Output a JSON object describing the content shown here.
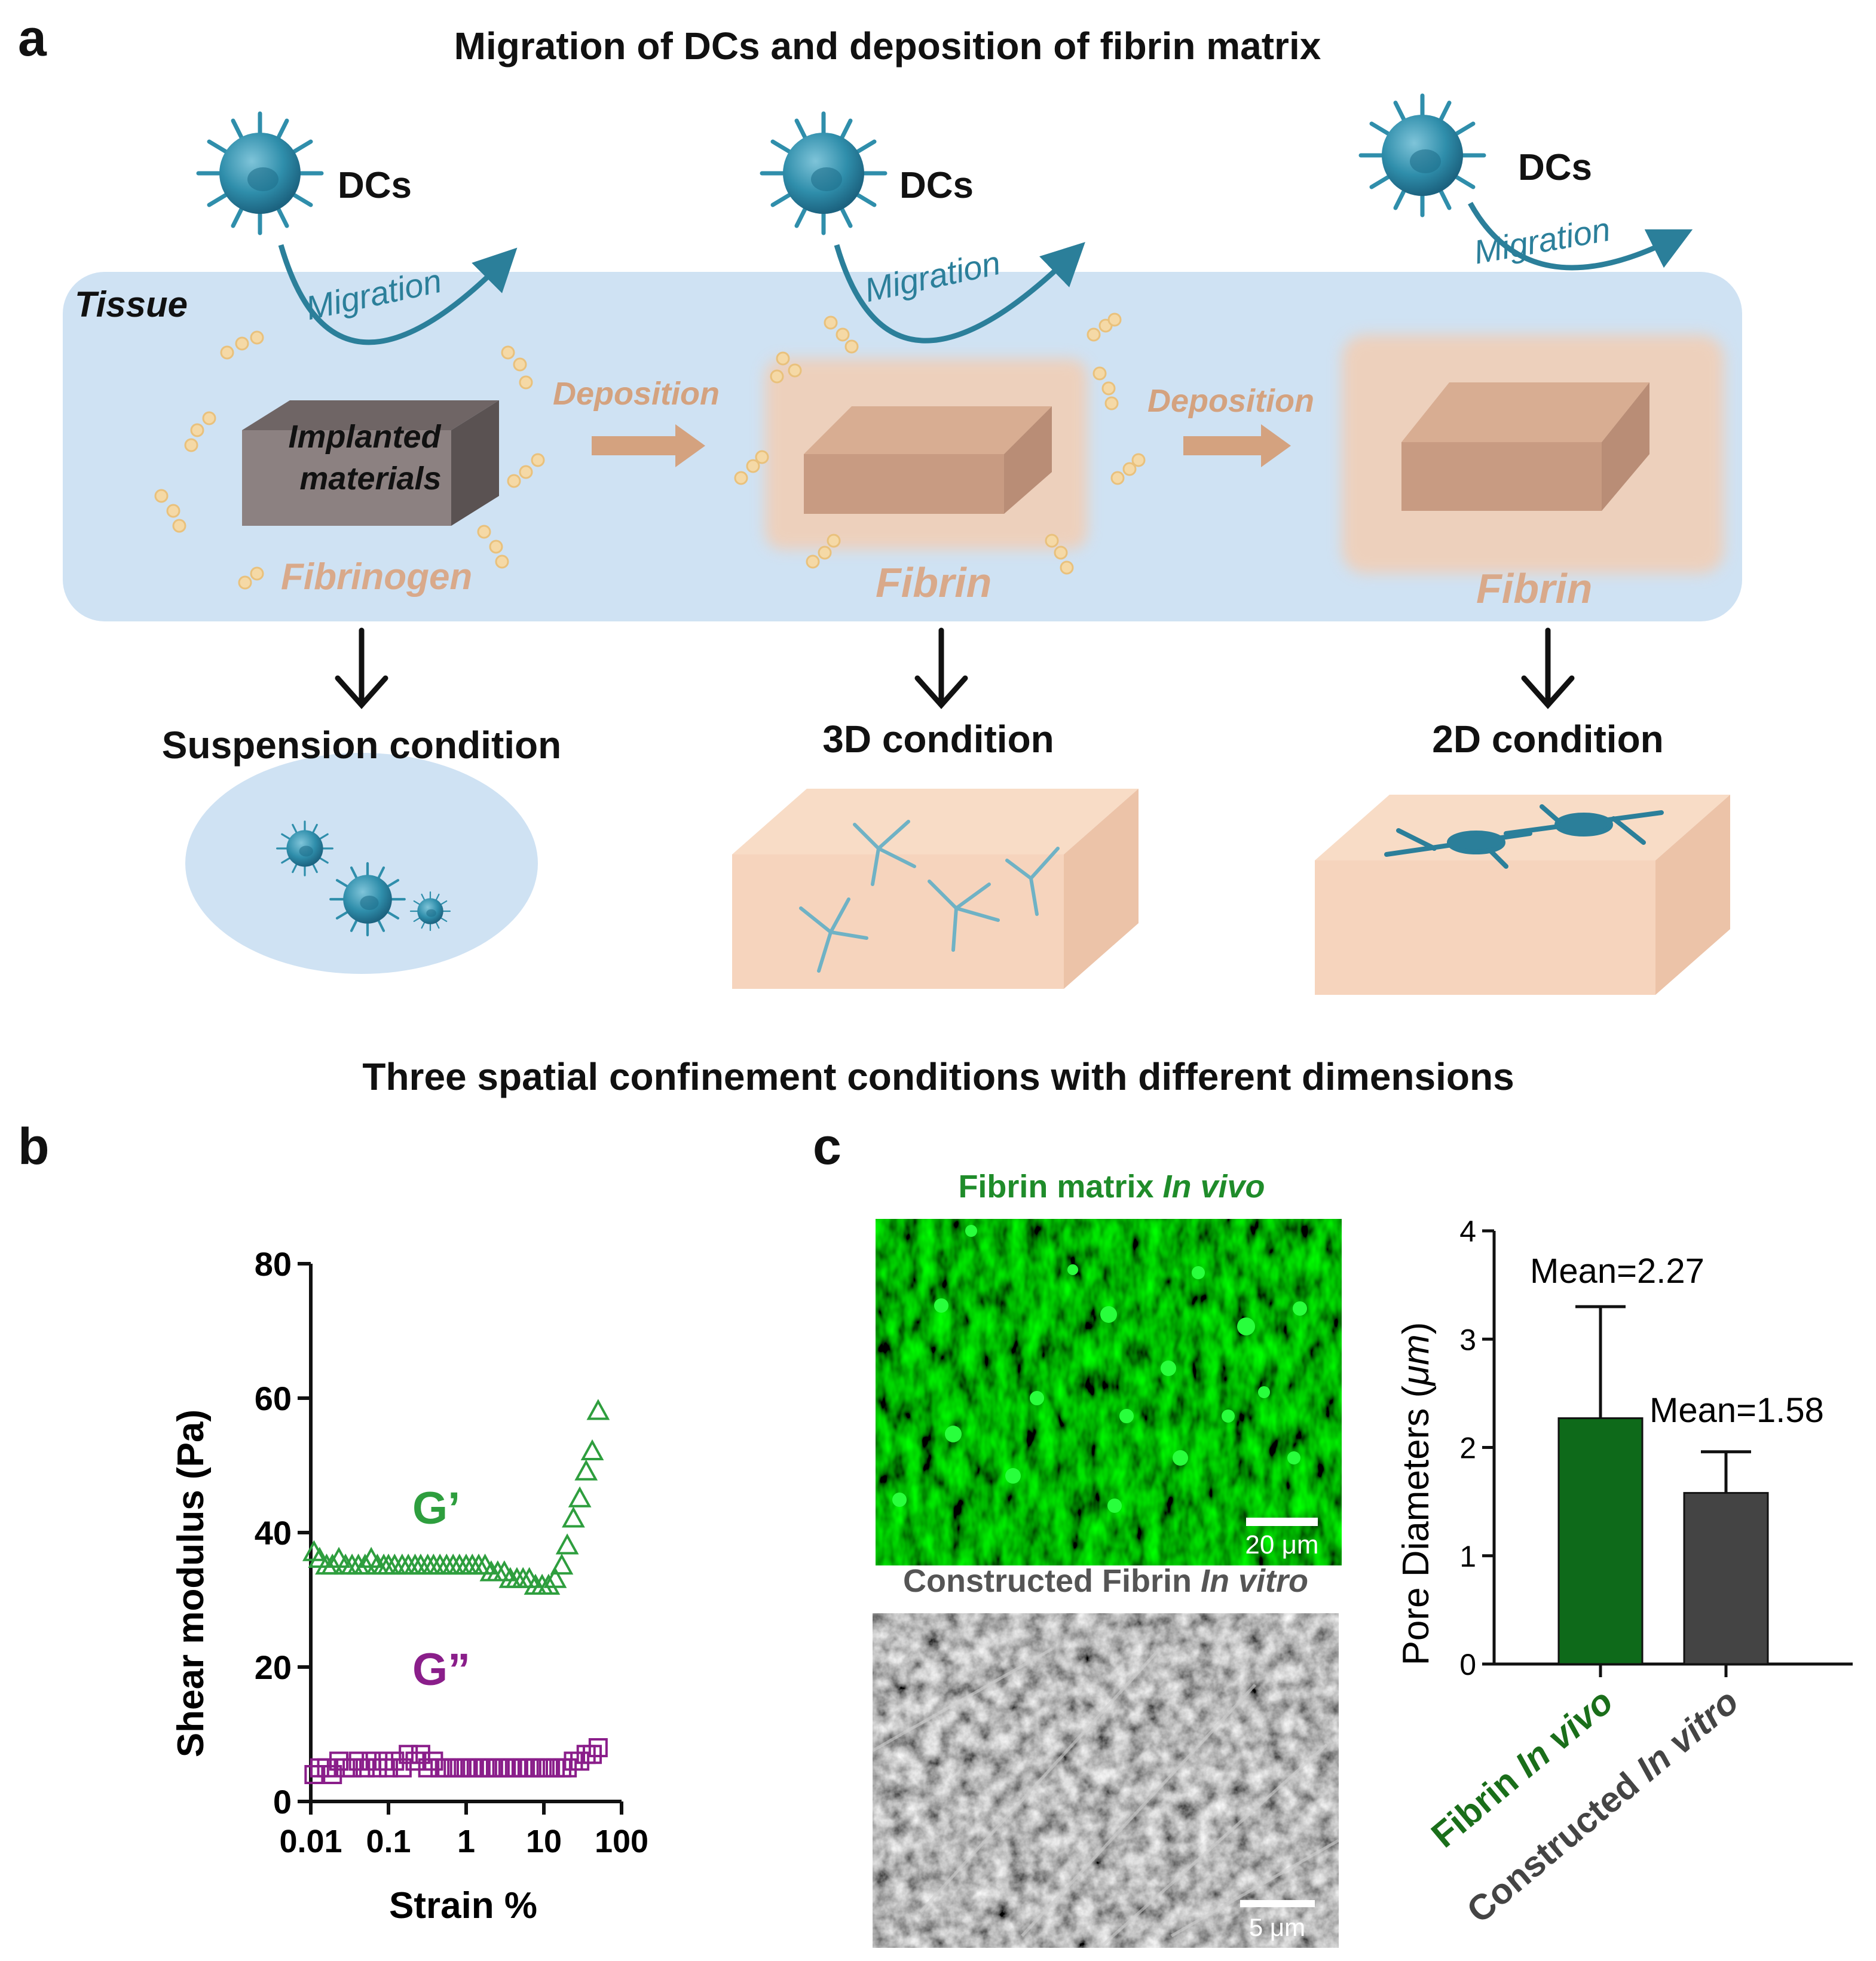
{
  "panel_a": {
    "letter": "a",
    "title": "Migration of DCs and deposition of fibrin matrix",
    "tissue_label": "Tissue",
    "dcs_label": "DCs",
    "migration_label": "Migration",
    "implanted_line1": "Implanted",
    "implanted_line2": "materials",
    "fibrinogen_label": "Fibrinogen",
    "deposition_label": "Deposition",
    "fibrin_label": "Fibrin",
    "conditions": [
      "Suspension condition",
      "3D condition",
      "2D condition"
    ],
    "footer": "Three spatial confinement conditions with different dimensions"
  },
  "panel_b": {
    "letter": "b",
    "g_prime_label": "G’",
    "g_double_prime_label": "G”",
    "g_prime_color": "#2e9e3e",
    "g_double_prime_color": "#8a1e8a"
  },
  "panel_c": {
    "letter": "c",
    "invivo_title_plain": "Fibrin matrix ",
    "invivo_title_italic": "In vivo",
    "invivo_scalebar": "20 μm",
    "invitro_title_plain": "Constructed Fibrin ",
    "invitro_title_italic": "In vitro",
    "invitro_scalebar": "5 μm"
  },
  "chart_data": [
    {
      "type": "scatter",
      "xlabel": "Strain %",
      "ylabel": "Shear modulus (Pa)",
      "xscale": "log",
      "xlim": [
        0.01,
        100
      ],
      "ylim": [
        0,
        80
      ],
      "xticks": [
        "0.01",
        "0.1",
        "1",
        "10",
        "100"
      ],
      "yticks": [
        "0",
        "20",
        "40",
        "60",
        "80"
      ],
      "grid": false,
      "series": [
        {
          "name": "G’",
          "marker": "triangle",
          "color": "#2e9e3e",
          "x": [
            0.011,
            0.013,
            0.016,
            0.019,
            0.023,
            0.028,
            0.034,
            0.041,
            0.05,
            0.06,
            0.072,
            0.087,
            0.1,
            0.12,
            0.15,
            0.18,
            0.22,
            0.26,
            0.32,
            0.38,
            0.46,
            0.56,
            0.68,
            0.82,
            1,
            1.2,
            1.45,
            1.75,
            2.1,
            2.55,
            3.1,
            3.7,
            4.5,
            5.4,
            6.5,
            7.8,
            9.5,
            11.5,
            14,
            17,
            20,
            24,
            29,
            35,
            42,
            50
          ],
          "y": [
            37,
            36,
            35,
            35,
            36,
            35,
            35,
            35,
            35,
            36,
            35,
            35,
            35,
            35,
            35,
            35,
            35,
            35,
            35,
            35,
            35,
            35,
            35,
            35,
            35,
            35,
            35,
            35,
            34,
            34,
            34,
            33,
            33,
            33,
            33,
            32,
            32,
            32,
            33,
            35,
            38,
            42,
            45,
            49,
            52,
            58
          ]
        },
        {
          "name": "G”",
          "marker": "square",
          "color": "#8a1e8a",
          "x": [
            0.011,
            0.013,
            0.016,
            0.019,
            0.023,
            0.028,
            0.034,
            0.041,
            0.05,
            0.06,
            0.072,
            0.087,
            0.1,
            0.12,
            0.15,
            0.18,
            0.22,
            0.26,
            0.32,
            0.38,
            0.46,
            0.56,
            0.68,
            0.82,
            1,
            1.2,
            1.45,
            1.75,
            2.1,
            2.55,
            3.1,
            3.7,
            4.5,
            5.4,
            6.5,
            7.8,
            9.5,
            11.5,
            14,
            17,
            20,
            24,
            29,
            35,
            42,
            50
          ],
          "y": [
            4,
            5,
            5,
            4,
            6,
            5,
            5,
            6,
            5,
            6,
            5,
            6,
            5,
            6,
            5,
            7,
            6,
            7,
            5,
            6,
            5,
            5,
            5,
            5,
            5,
            5,
            5,
            5,
            5,
            5,
            5,
            5,
            5,
            5,
            5,
            5,
            5,
            5,
            5,
            5,
            5,
            6,
            6,
            7,
            7,
            8
          ]
        }
      ]
    },
    {
      "type": "bar",
      "ylabel_plain": "Pore Diameters (",
      "ylabel_italic": "μm",
      "ylabel_close": ")",
      "ylim": [
        0,
        4
      ],
      "yticks": [
        "0",
        "1",
        "2",
        "3",
        "4"
      ],
      "categories": [
        {
          "plain": "Fibrin ",
          "italic": "In vivo",
          "color": "#1a6e1a"
        },
        {
          "plain": "Constructed ",
          "italic": "In vitro",
          "color": "#444444"
        }
      ],
      "values": [
        2.27,
        1.58
      ],
      "error_upper": [
        3.3,
        1.96
      ],
      "bar_colors": [
        "#0e6a1a",
        "#444444"
      ],
      "annotations": [
        "Mean=2.27",
        "Mean=1.58"
      ]
    }
  ]
}
